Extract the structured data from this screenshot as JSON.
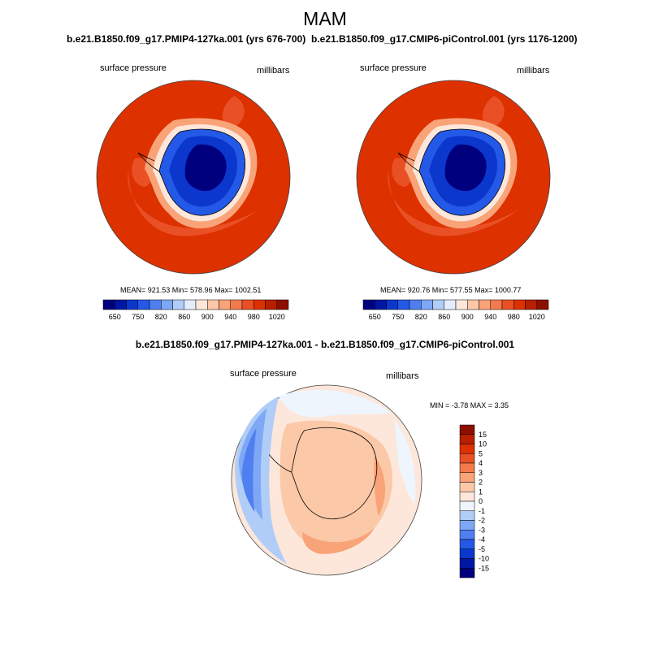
{
  "figure": {
    "season_title": "MAM",
    "left_panel": {
      "title": "b.e21.B1850.f09_g17.PMIP4-127ka.001 (yrs 676-700)",
      "variable": "surface pressure",
      "units": "millibars",
      "stats": "MEAN= 921.53  Min= 578.96  Max= 1002.51"
    },
    "right_panel": {
      "title": "b.e21.B1850.f09_g17.CMIP6-piControl.001 (yrs 1176-1200)",
      "variable": "surface pressure",
      "units": "millibars",
      "stats": "MEAN= 920.76  Min= 577.55  Max= 1000.77"
    },
    "diff_panel": {
      "title": "b.e21.B1850.f09_g17.PMIP4-127ka.001 - b.e21.B1850.f09_g17.CMIP6-piControl.001",
      "variable": "surface pressure",
      "units": "millibars",
      "stats": "MIN =  -3.78 MAX =   3.35"
    }
  },
  "chart_data": [
    {
      "type": "heatmap",
      "projection": "south polar stereographic",
      "title": "b.e21.B1850.f09_g17.PMIP4-127ka.001 (yrs 676-700)",
      "variable": "surface pressure",
      "units": "millibars",
      "mean": 921.53,
      "min": 578.96,
      "max": 1002.51,
      "colorbar": {
        "orientation": "horizontal",
        "tick_labels": [
          "650",
          "750",
          "820",
          "860",
          "900",
          "940",
          "980",
          "1020"
        ],
        "colors": [
          "#00007f",
          "#0017a3",
          "#0b37cc",
          "#2458e6",
          "#4f7ff0",
          "#7ea8f5",
          "#b0cdf8",
          "#e3edfb",
          "#fde7da",
          "#fbc8a8",
          "#f8a378",
          "#f37a4c",
          "#ea5026",
          "#dd3100",
          "#b81f00",
          "#8c0f00"
        ]
      }
    },
    {
      "type": "heatmap",
      "projection": "south polar stereographic",
      "title": "b.e21.B1850.f09_g17.CMIP6-piControl.001 (yrs 1176-1200)",
      "variable": "surface pressure",
      "units": "millibars",
      "mean": 920.76,
      "min": 577.55,
      "max": 1000.77,
      "colorbar": {
        "orientation": "horizontal",
        "tick_labels": [
          "650",
          "750",
          "820",
          "860",
          "900",
          "940",
          "980",
          "1020"
        ],
        "colors": [
          "#00007f",
          "#0017a3",
          "#0b37cc",
          "#2458e6",
          "#4f7ff0",
          "#7ea8f5",
          "#b0cdf8",
          "#e3edfb",
          "#fde7da",
          "#fbc8a8",
          "#f8a378",
          "#f37a4c",
          "#ea5026",
          "#dd3100",
          "#b81f00",
          "#8c0f00"
        ]
      }
    },
    {
      "type": "heatmap",
      "projection": "south polar stereographic",
      "title": "b.e21.B1850.f09_g17.PMIP4-127ka.001 - b.e21.B1850.f09_g17.CMIP6-piControl.001",
      "variable": "surface pressure",
      "units": "millibars",
      "min": -3.78,
      "max": 3.35,
      "colorbar": {
        "orientation": "vertical",
        "tick_labels": [
          "15",
          "10",
          "5",
          "4",
          "3",
          "2",
          "1",
          "0",
          "-1",
          "-2",
          "-3",
          "-4",
          "-5",
          "-10",
          "-15"
        ],
        "colors": [
          "#8c0f00",
          "#b81f00",
          "#dd3100",
          "#ea5026",
          "#f37a4c",
          "#f8a378",
          "#fbc8a8",
          "#fde7da",
          "#eef5fc",
          "#b0cdf8",
          "#7ea8f5",
          "#4f7ff0",
          "#2458e6",
          "#0b37cc",
          "#0017a3",
          "#00007f"
        ]
      }
    }
  ]
}
